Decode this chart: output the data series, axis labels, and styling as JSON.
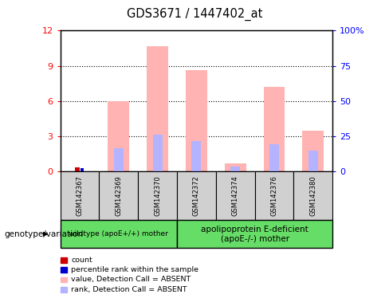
{
  "title": "GDS3671 / 1447402_at",
  "samples": [
    "GSM142367",
    "GSM142369",
    "GSM142370",
    "GSM142372",
    "GSM142374",
    "GSM142376",
    "GSM142380"
  ],
  "pink_bars": [
    0.0,
    6.0,
    10.7,
    8.6,
    0.7,
    7.2,
    3.5
  ],
  "blue_bars": [
    0.0,
    2.0,
    3.1,
    2.6,
    0.4,
    2.3,
    1.8
  ],
  "red_bar_0": 0.35,
  "blue_bar_0": 0.25,
  "ylim_left": [
    0,
    12
  ],
  "ylim_right": [
    0,
    100
  ],
  "yticks_left": [
    0,
    3,
    6,
    9,
    12
  ],
  "yticks_right": [
    0,
    25,
    50,
    75,
    100
  ],
  "ytick_labels_right": [
    "0",
    "25",
    "50",
    "75",
    "100%"
  ],
  "group1_indices": [
    0,
    1,
    2
  ],
  "group2_indices": [
    3,
    4,
    5,
    6
  ],
  "group1_label": "wildtype (apoE+/+) mother",
  "group2_label": "apolipoprotein E-deficient\n(apoE-/-) mother",
  "genotype_label": "genotype/variation",
  "legend_items": [
    {
      "color": "#cc0000",
      "label": "count"
    },
    {
      "color": "#0000cc",
      "label": "percentile rank within the sample"
    },
    {
      "color": "#ffb3b3",
      "label": "value, Detection Call = ABSENT"
    },
    {
      "color": "#b3b3ff",
      "label": "rank, Detection Call = ABSENT"
    }
  ],
  "pink_color": "#ffb3b3",
  "light_blue_color": "#b3b3ff",
  "red_color": "#cc0000",
  "blue_color": "#0000cc",
  "bg_color": "#d0d0d0",
  "green_color": "#66dd66",
  "plot_bg": "#ffffff"
}
